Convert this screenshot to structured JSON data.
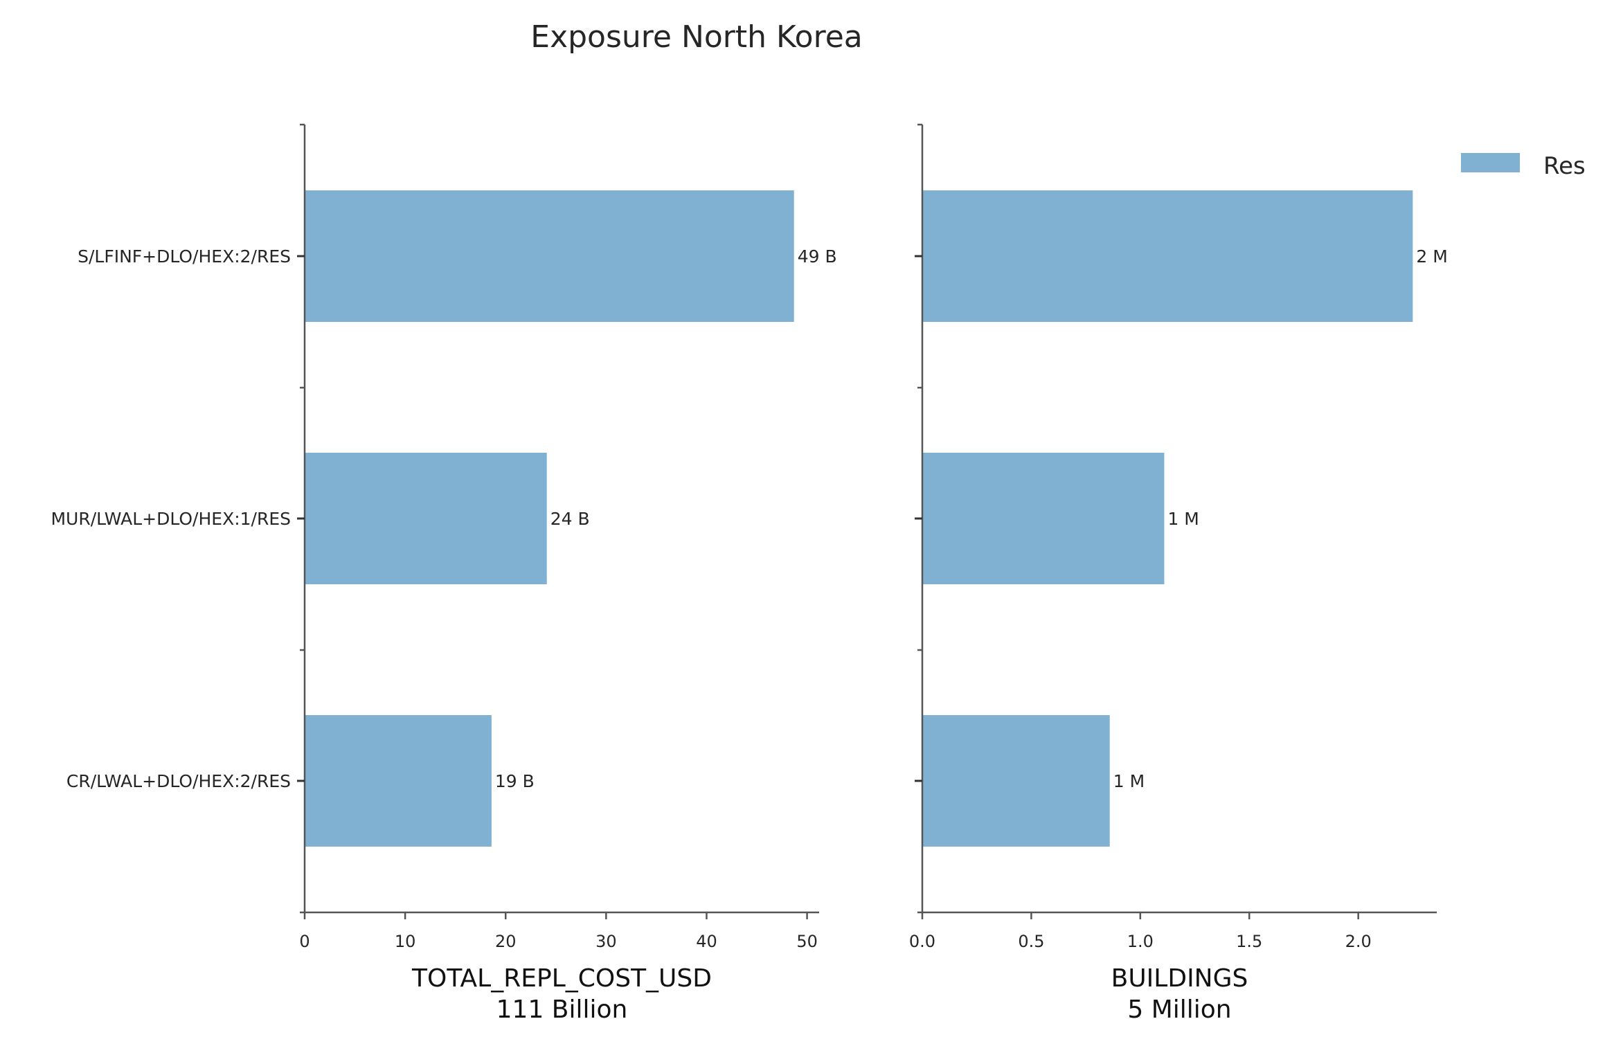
{
  "title": "Exposure North Korea",
  "legend": {
    "entries": [
      "Res"
    ]
  },
  "colors": {
    "bar": "#80b1d3",
    "axis": "#555555",
    "text": "#262626"
  },
  "chart_data": [
    {
      "type": "bar",
      "orientation": "horizontal",
      "categories": [
        "S/LFINF+DLO/HEX:2/RES",
        "MUR/LWAL+DLO/HEX:1/RES",
        "CR/LWAL+DLO/HEX:2/RES"
      ],
      "series": [
        {
          "name": "Res",
          "values": [
            48.7,
            24.1,
            18.6
          ]
        }
      ],
      "data_labels": [
        "49 B",
        "24 B",
        "19 B"
      ],
      "xlabel": "TOTAL_REPL_COST_USD",
      "xlabel2": "111 Billion",
      "xlim": [
        0,
        51.2
      ],
      "xticks": [
        0,
        10,
        20,
        30,
        40,
        50
      ],
      "xtick_labels": [
        "0",
        "10",
        "20",
        "30",
        "40",
        "50"
      ]
    },
    {
      "type": "bar",
      "orientation": "horizontal",
      "categories": [
        "S/LFINF+DLO/HEX:2/RES",
        "MUR/LWAL+DLO/HEX:1/RES",
        "CR/LWAL+DLO/HEX:2/RES"
      ],
      "series": [
        {
          "name": "Res",
          "values": [
            2.25,
            1.11,
            0.86
          ]
        }
      ],
      "data_labels": [
        "2 M",
        "1 M",
        "1 M"
      ],
      "xlabel": "BUILDINGS",
      "xlabel2": "5 Million",
      "xlim": [
        0,
        2.36
      ],
      "xticks": [
        0,
        0.5,
        1.0,
        1.5,
        2.0
      ],
      "xtick_labels": [
        "0.0",
        "0.5",
        "1.0",
        "1.5",
        "2.0"
      ]
    }
  ]
}
